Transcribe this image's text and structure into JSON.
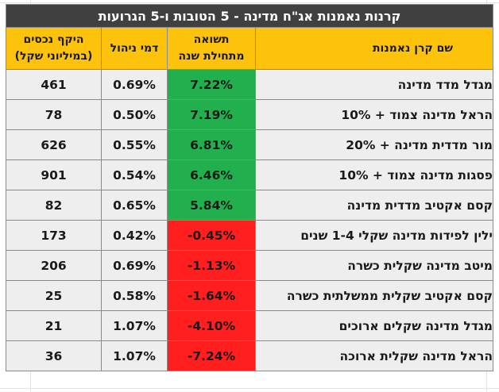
{
  "table": {
    "title": "קרנות נאמנות אג\"ח מדינה - 5 הטובות ו-5 הגרועות",
    "headers": {
      "name": "שם קרן נאמנות",
      "return_line1": "תשואה",
      "return_line2": "מתחילת שנה",
      "fee": "דמי ניהול",
      "assets_line1": "היקף נכסים",
      "assets_line2": "(במיליוני שקל)"
    },
    "colors": {
      "title_bg": "#404040",
      "header_bg": "#fcc20c",
      "positive": "#22b04e",
      "negative": "#ff1f1f",
      "row_bg": "#eeeeee"
    },
    "rows": [
      {
        "name": "מגדל מדד מדינה",
        "return": "7.22%",
        "fee": "0.69%",
        "assets": "461",
        "status": "pos"
      },
      {
        "name": "הראל מדינה צמוד + 10%",
        "return": "7.19%",
        "fee": "0.50%",
        "assets": "78",
        "status": "pos"
      },
      {
        "name": "מור מדדית מדינה + 20%",
        "return": "6.81%",
        "fee": "0.55%",
        "assets": "626",
        "status": "pos"
      },
      {
        "name": "פסגות מדינה צמוד + 10%",
        "return": "6.46%",
        "fee": "0.54%",
        "assets": "901",
        "status": "pos"
      },
      {
        "name": "קסם אקטיב מדדית מדינה",
        "return": "5.84%",
        "fee": "0.65%",
        "assets": "82",
        "status": "pos"
      },
      {
        "name": "ילין לפידות מדינה שקלי 1-4 שנים",
        "return": "-0.45%",
        "fee": "0.42%",
        "assets": "173",
        "status": "neg"
      },
      {
        "name": "מיטב מדינה שקלית כשרה",
        "return": "-1.13%",
        "fee": "0.69%",
        "assets": "206",
        "status": "neg"
      },
      {
        "name": "קסם אקטיב שקלית ממשלתית כשרה",
        "return": "-1.64%",
        "fee": "0.58%",
        "assets": "25",
        "status": "neg"
      },
      {
        "name": "מגדל מדינה שקלים ארוכים",
        "return": "-4.10%",
        "fee": "1.07%",
        "assets": "21",
        "status": "neg"
      },
      {
        "name": "הראל מדינה שקלית ארוכה",
        "return": "-7.24%",
        "fee": "1.07%",
        "assets": "36",
        "status": "neg"
      }
    ]
  }
}
